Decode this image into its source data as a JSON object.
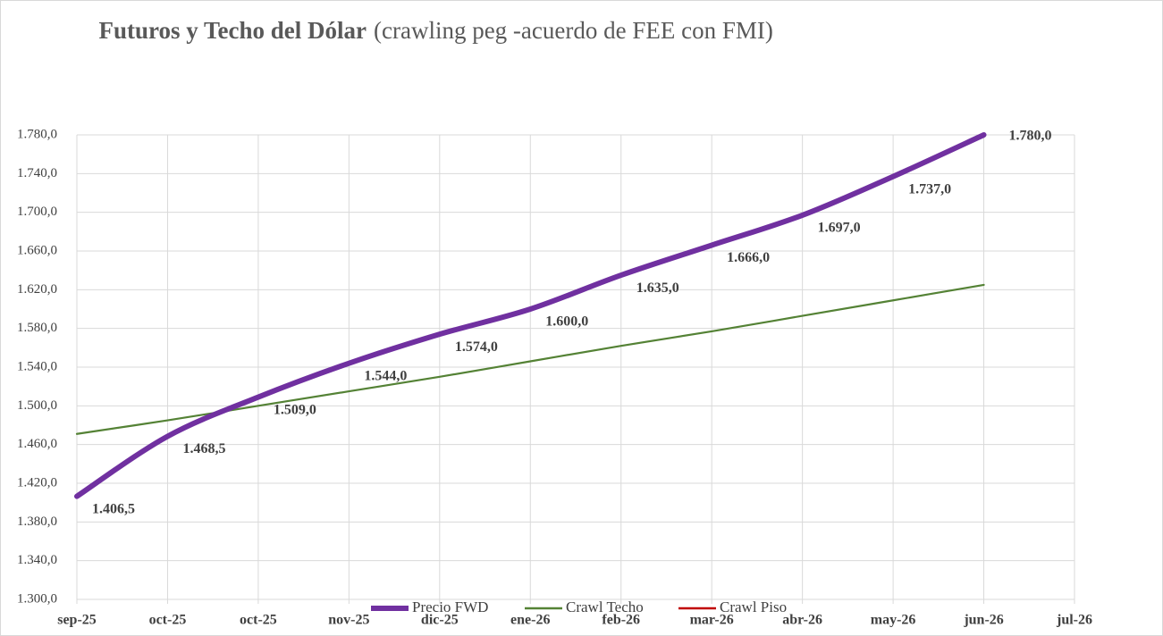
{
  "chart_data": {
    "type": "line",
    "title": "Futuros y Techo del Dólar",
    "subtitle": "(crawling peg -acuerdo de FEE con FMI)",
    "categories": [
      "sep-25",
      "oct-25",
      "oct-25",
      "nov-25",
      "dic-25",
      "ene-26",
      "feb-26",
      "mar-26",
      "abr-26",
      "may-26",
      "jun-26",
      "jul-26"
    ],
    "series": [
      {
        "name": "Precio FWD",
        "color": "#7030a0",
        "values": [
          1406.5,
          1468.5,
          1509.0,
          1544.0,
          1574.0,
          1600.0,
          1635.0,
          1666.0,
          1697.0,
          1737.0,
          1780.0,
          null
        ],
        "value_labels": [
          "1.406,5",
          "1.468,5",
          "1.509,0",
          "1.544,0",
          "1.574,0",
          "1.600,0",
          "1.635,0",
          "1.666,0",
          "1.697,0",
          "1.737,0",
          "1.780,0",
          null
        ]
      },
      {
        "name": "Crawl Techo",
        "color": "#548235",
        "values": [
          1471,
          1485,
          1500,
          1515,
          1530,
          1546,
          1562,
          1577,
          1593,
          1609,
          1625,
          null
        ]
      },
      {
        "name": "Crawl Piso",
        "color": "#c00000",
        "values": [
          null,
          null,
          null,
          null,
          null,
          null,
          null,
          null,
          null,
          null,
          null,
          null
        ]
      }
    ],
    "ylim": [
      1300,
      1780
    ],
    "yticks": [
      {
        "value": 1300,
        "label": "1.300,0"
      },
      {
        "value": 1340,
        "label": "1.340,0"
      },
      {
        "value": 1380,
        "label": "1.380,0"
      },
      {
        "value": 1420,
        "label": "1.420,0"
      },
      {
        "value": 1460,
        "label": "1.460,0"
      },
      {
        "value": 1500,
        "label": "1.500,0"
      },
      {
        "value": 1540,
        "label": "1.540,0"
      },
      {
        "value": 1580,
        "label": "1.580,0"
      },
      {
        "value": 1620,
        "label": "1.620,0"
      },
      {
        "value": 1660,
        "label": "1.660,0"
      },
      {
        "value": 1700,
        "label": "1.700,0"
      },
      {
        "value": 1740,
        "label": "1.740,0"
      },
      {
        "value": 1780,
        "label": "1.780,0"
      }
    ],
    "grid": true,
    "legend": "bottom"
  }
}
